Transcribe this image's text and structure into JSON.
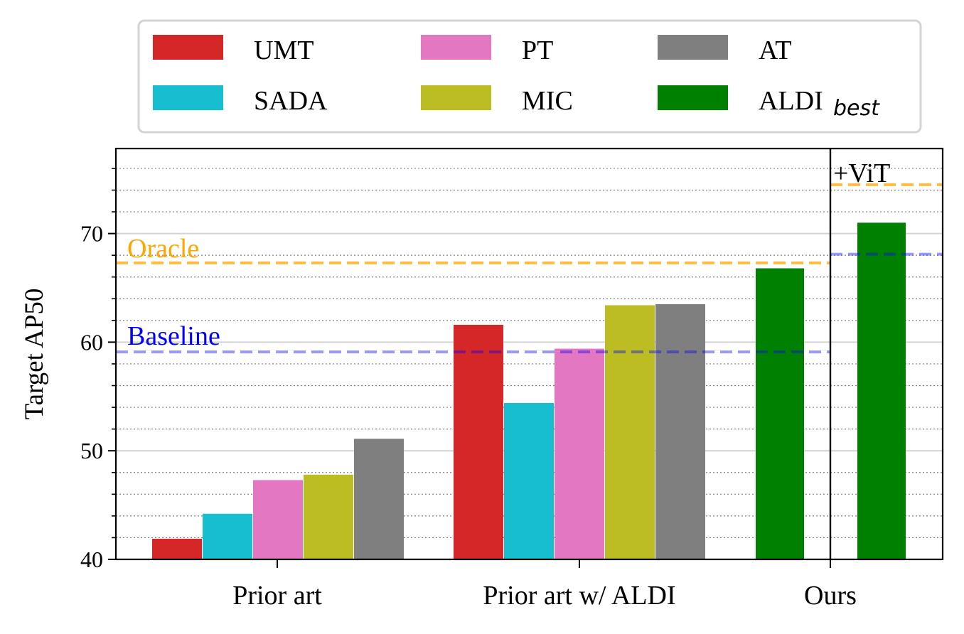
{
  "chart_data": {
    "type": "bar",
    "ylabel": "Target AP50",
    "ylim": [
      40,
      78
    ],
    "yticks": [
      "40",
      "50",
      "60",
      "70"
    ],
    "groups": [
      "Prior art",
      "Prior art w/ ALDI",
      "Ours"
    ],
    "legend": {
      "placement": "top-center",
      "entries": [
        {
          "key": "UMT",
          "label": "UMT",
          "color": "#d62728"
        },
        {
          "key": "SADA",
          "label": "SADA",
          "color": "#17becf"
        },
        {
          "key": "PT",
          "label": "PT",
          "color": "#e377c2"
        },
        {
          "key": "MIC",
          "label": "MIC",
          "color": "#bcbd22"
        },
        {
          "key": "AT",
          "label": "AT",
          "color": "#7f7f7f"
        },
        {
          "key": "ALDI",
          "label": "ALDI",
          "subscript": "best",
          "color": "#008000"
        }
      ]
    },
    "series_values": {
      "prior_art": {
        "UMT": 41.9,
        "SADA": 44.2,
        "PT": 47.3,
        "MIC": 47.8,
        "AT": 51.1
      },
      "prior_art_aldi": {
        "UMT": 61.6,
        "SADA": 54.4,
        "PT": 59.4,
        "MIC": 63.4,
        "AT": 63.5
      }
    },
    "ours": [
      {
        "label": "ALDI best",
        "value": 66.8,
        "color": "#008000"
      },
      {
        "label": "ALDI best +ViT",
        "value": 71.0,
        "color": "#008000"
      }
    ],
    "reference_lines": {
      "oracle": {
        "label": "Oracle",
        "value": 67.3,
        "color": "#ffa500"
      },
      "baseline": {
        "label": "Baseline",
        "value": 59.1,
        "color": "#0000ff"
      },
      "vit_oracle": {
        "value": 74.5,
        "color": "#ffa500"
      },
      "vit_baseline": {
        "value": 68.1,
        "color": "#0000ff"
      }
    },
    "annotation": "+ViT",
    "grid": {
      "major": true,
      "minor": true
    }
  }
}
